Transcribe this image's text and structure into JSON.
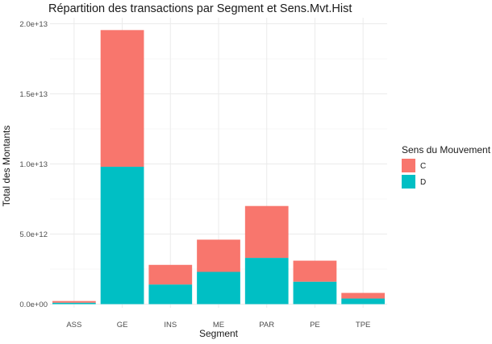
{
  "chart_data": {
    "type": "bar",
    "stacked": true,
    "title": "Répartition des transactions par Segment et Sens.Mvt.Hist",
    "xlabel": "Segment",
    "ylabel": "Total des Montants",
    "categories": [
      "ASS",
      "GE",
      "INS",
      "ME",
      "PAR",
      "PE",
      "TPE"
    ],
    "ylim": [
      0,
      20000000000000
    ],
    "yticks": [
      0,
      5000000000000,
      10000000000000,
      15000000000000,
      20000000000000
    ],
    "ytick_labels": [
      "0.0e+00",
      "5.0e+12",
      "1.0e+13",
      "1.5e+13",
      "2.0e+13"
    ],
    "grid": true,
    "legend": {
      "title": "Sens du Mouvement",
      "position": "right"
    },
    "series": [
      {
        "name": "D",
        "color": "#00bfc4",
        "values": [
          100000000000,
          9800000000000,
          1400000000000,
          2300000000000,
          3300000000000,
          1600000000000,
          400000000000
        ]
      },
      {
        "name": "C",
        "color": "#f8766d",
        "values": [
          120000000000,
          9750000000000,
          1400000000000,
          2300000000000,
          3700000000000,
          1500000000000,
          400000000000
        ]
      }
    ],
    "legend_order": [
      "C",
      "D"
    ]
  }
}
